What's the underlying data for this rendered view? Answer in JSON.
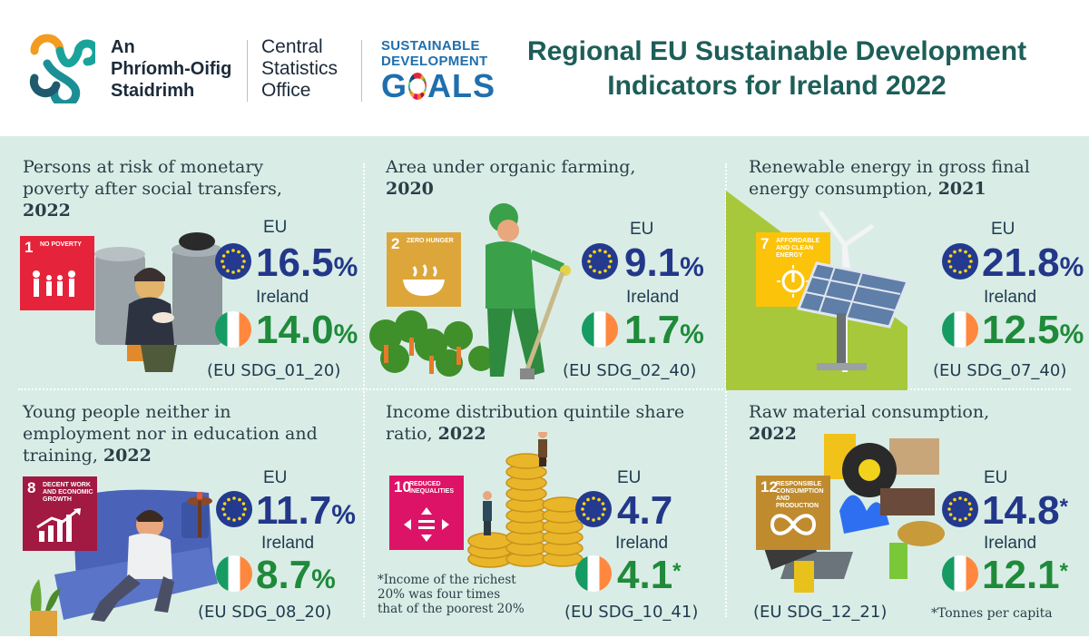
{
  "header": {
    "org_name_ga": [
      "An",
      "Phríomh-Oifig",
      "Staidrimh"
    ],
    "org_name_en": [
      "Central",
      "Statistics",
      "Office"
    ],
    "sdg_logo": {
      "line1": "SUSTAINABLE",
      "line2": "DEVELOPMENT",
      "goals_pre": "G",
      "goals_post": "ALS"
    },
    "title_line1": "Regional EU Sustainable Development",
    "title_line2": "Indicators for Ireland 2022"
  },
  "colors": {
    "eu_value": "#23378a",
    "ireland_value": "#1f8a3a",
    "title": "#1d5e58",
    "background": "#d9ede6"
  },
  "panels": [
    {
      "title": "Persons at risk of monetary poverty after social transfers,",
      "year": "2022",
      "sdg": {
        "number": "1",
        "text": "NO POVERTY",
        "color": "#e5243b",
        "icon": "family-icon"
      },
      "eu_label": "EU",
      "eu_value": "16.5",
      "eu_unit": "%",
      "eu_sup": "",
      "ie_label": "Ireland",
      "ie_value": "14.0",
      "ie_unit": "%",
      "ie_sup": "",
      "code": "(EU SDG_01_20)"
    },
    {
      "title": "Area under organic farming,",
      "year": "2020",
      "sdg": {
        "number": "2",
        "text": "ZERO HUNGER",
        "color": "#dda63a",
        "icon": "bowl-icon"
      },
      "eu_label": "EU",
      "eu_value": "9.1",
      "eu_unit": "%",
      "eu_sup": "",
      "ie_label": "Ireland",
      "ie_value": "1.7",
      "ie_unit": "%",
      "ie_sup": "",
      "code": "(EU SDG_02_40)"
    },
    {
      "title": "Renewable energy in gross final energy consumption,",
      "year": "2021",
      "sdg": {
        "number": "7",
        "text": "AFFORDABLE AND CLEAN ENERGY",
        "color": "#fcc30b",
        "icon": "sun-power-icon"
      },
      "eu_label": "EU",
      "eu_value": "21.8",
      "eu_unit": "%",
      "eu_sup": "",
      "ie_label": "Ireland",
      "ie_value": "12.5",
      "ie_unit": "%",
      "ie_sup": "",
      "code": "(EU SDG_07_40)"
    },
    {
      "title": "Young people neither in employment nor in education and training,",
      "year": "2022",
      "sdg": {
        "number": "8",
        "text": "DECENT WORK AND ECONOMIC GROWTH",
        "color": "#a21942",
        "icon": "growth-chart-icon"
      },
      "eu_label": "EU",
      "eu_value": "11.7",
      "eu_unit": "%",
      "eu_sup": "",
      "ie_label": "Ireland",
      "ie_value": "8.7",
      "ie_unit": "%",
      "ie_sup": "",
      "code": "(EU SDG_08_20)"
    },
    {
      "title": "Income distribution quintile share ratio,",
      "year": "2022",
      "sdg": {
        "number": "10",
        "text": "REDUCED INEQUALITIES",
        "color": "#dd1367",
        "icon": "equality-icon"
      },
      "eu_label": "EU",
      "eu_value": "4.7",
      "eu_unit": "",
      "eu_sup": "",
      "ie_label": "Ireland",
      "ie_value": "4.1",
      "ie_unit": "",
      "ie_sup": "*",
      "code": "(EU SDG_10_41)",
      "note": [
        "*Income of the richest",
        "20% was four times",
        "that of the poorest 20%"
      ]
    },
    {
      "title": "Raw material consumption,",
      "year": "2022",
      "sdg": {
        "number": "12",
        "text": "RESPONSIBLE CONSUMPTION AND PRODUCTION",
        "color": "#bf8b2e",
        "icon": "infinity-icon"
      },
      "eu_label": "EU",
      "eu_value": "14.8",
      "eu_unit": "",
      "eu_sup": "*",
      "ie_label": "Ireland",
      "ie_value": "12.1",
      "ie_unit": "",
      "ie_sup": "*",
      "code": "(EU SDG_12_21)",
      "note": [
        "*Tonnes per capita"
      ]
    }
  ]
}
